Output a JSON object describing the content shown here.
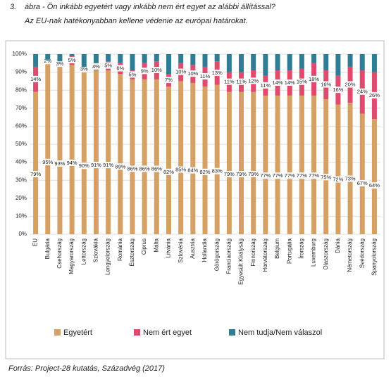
{
  "chart_data": {
    "type": "stacked_bar",
    "figure_number": "3.",
    "title": "ábra - Ön inkább egyetért vagy inkább nem ért egyet az alábbi állítással?",
    "subtitle": "Az EU-nak hatékonyabban kellene védenie az európai határokat.",
    "source": "Forrás: Project-28 kutatás, Századvég (2017)",
    "categories": [
      "EU",
      "Bulgária",
      "Csehország",
      "Magyarország",
      "Lettország",
      "Szlovákia",
      "Lengyelország",
      "Románia",
      "Észtország",
      "Ciprus",
      "Málta",
      "Litvánia",
      "Szlovénia",
      "Ausztria",
      "Hollandia",
      "Görögország",
      "Franciaország",
      "Egyesült Királyság",
      "Finnország",
      "Horvátország",
      "Belgium",
      "Portugália",
      "Írország",
      "Luxemburg",
      "Olaszország",
      "Dánia",
      "Németország",
      "Svédország",
      "Spanyolország"
    ],
    "series": [
      {
        "name": "Egyetért",
        "color": "#d6a064",
        "values": [
          79,
          95,
          93,
          94,
          90,
          91,
          91,
          89,
          86,
          86,
          86,
          82,
          85,
          84,
          82,
          83,
          79,
          79,
          79,
          77,
          77,
          77,
          77,
          77,
          75,
          72,
          73,
          67,
          64
        ],
        "value_labels": [
          "79%",
          "95%",
          "93%",
          "94%",
          "90%",
          "91%",
          "91%",
          "89%",
          "86%",
          "86%",
          "86%",
          "82%",
          "85%",
          "84%",
          "82%",
          "83%",
          "79%",
          "79%",
          "79%",
          "77%",
          "77%",
          "77%",
          "77%",
          "77%",
          "75%",
          "72%",
          "73%",
          "67%",
          "64%"
        ]
      },
      {
        "name": "Nem ért egyet",
        "color": "#e04a6c",
        "values": [
          14,
          2,
          3,
          5,
          3,
          4,
          5,
          6,
          5,
          9,
          10,
          7,
          10,
          10,
          11,
          13,
          11,
          11,
          12,
          11,
          14,
          14,
          15,
          18,
          16,
          16,
          20,
          24,
          26
        ],
        "value_labels": [
          "14%",
          "2%",
          "3%",
          "5%",
          "3%",
          "4%",
          "5%",
          "6%",
          "5%",
          "9%",
          "10%",
          "7%",
          "10%",
          "10%",
          "11%",
          "13%",
          "11%",
          "11%",
          "12%",
          "11%",
          "14%",
          "14%",
          "15%",
          "18%",
          "16%",
          "16%",
          "20%",
          "24%",
          "26%"
        ]
      },
      {
        "name": "Nem tudja/Nem válaszol",
        "color": "#2f7d95",
        "values": [
          7,
          3,
          4,
          1,
          7,
          5,
          4,
          5,
          9,
          5,
          4,
          11,
          5,
          6,
          7,
          4,
          10,
          10,
          9,
          12,
          9,
          9,
          8,
          5,
          9,
          12,
          7,
          9,
          10
        ]
      }
    ],
    "ylim": [
      0,
      100
    ],
    "yticks": [
      {
        "value": 0,
        "label": "0%"
      },
      {
        "value": 10,
        "label": "10%"
      },
      {
        "value": 20,
        "label": "20%"
      },
      {
        "value": 30,
        "label": "30%"
      },
      {
        "value": 40,
        "label": "40%"
      },
      {
        "value": 50,
        "label": "50%"
      },
      {
        "value": 60,
        "label": "60%"
      },
      {
        "value": 70,
        "label": "70%"
      },
      {
        "value": 80,
        "label": "80%"
      },
      {
        "value": 90,
        "label": "90%"
      },
      {
        "value": 100,
        "label": "100%"
      }
    ],
    "grid": true,
    "legend": "bottom"
  }
}
